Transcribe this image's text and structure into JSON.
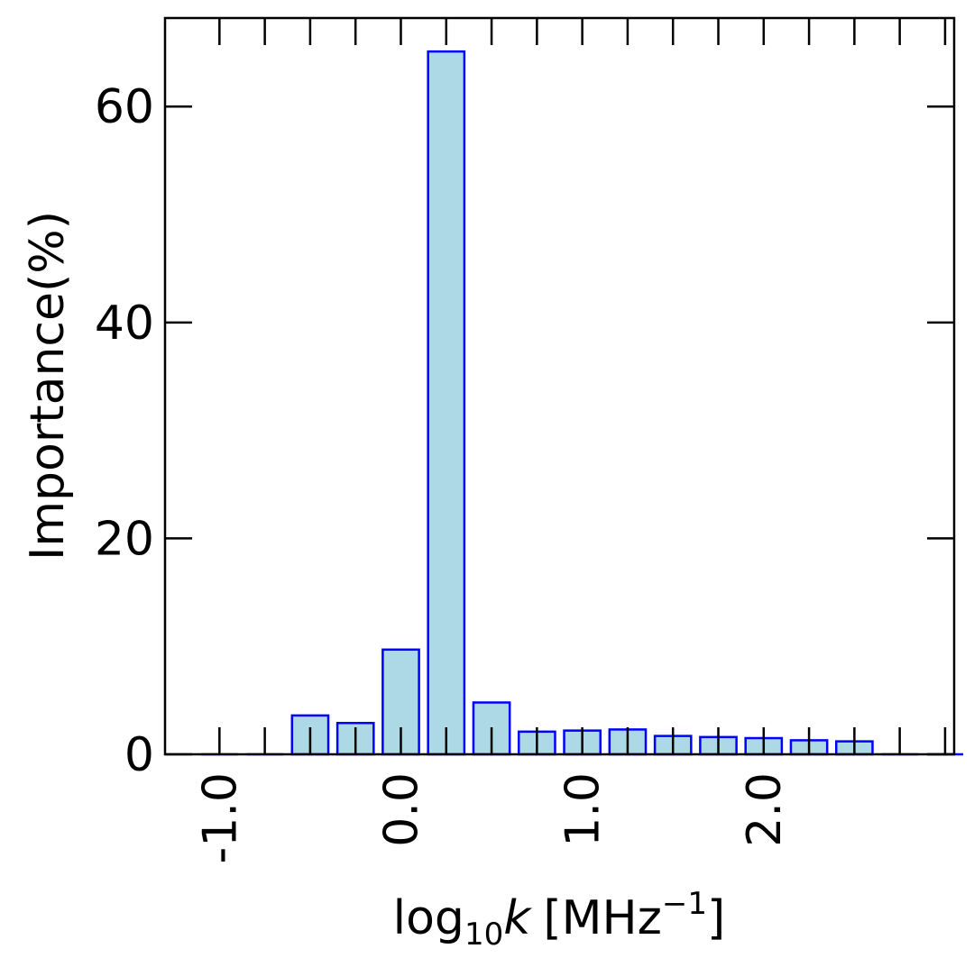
{
  "chart_data": {
    "type": "bar",
    "x": [
      -1.0,
      -0.75,
      -0.5,
      -0.25,
      0.0,
      0.25,
      0.5,
      0.75,
      1.0,
      1.25,
      1.5,
      1.75,
      2.0,
      2.25,
      2.5,
      2.75,
      3.0
    ],
    "values": [
      0,
      0,
      3.6,
      2.9,
      9.7,
      65.1,
      4.8,
      2.1,
      2.2,
      2.3,
      1.7,
      1.6,
      1.5,
      1.3,
      1.2,
      0,
      0
    ],
    "xlim": [
      -1.3,
      3.05
    ],
    "ylim": [
      0,
      68.2
    ],
    "xticks": [
      -1.0,
      0.0,
      1.0,
      2.0
    ],
    "xtick_labels": [
      "-1.0",
      "0.0",
      "1.0",
      "2.0"
    ],
    "yticks": [
      0,
      20,
      40,
      60
    ],
    "ytick_labels": [
      "0",
      "20",
      "40",
      "60"
    ],
    "xlabel": "log10k [MHz−1]",
    "xlabel_parts": {
      "base": "log",
      "sub": "10",
      "var": "k",
      "unit": "[MHz",
      "sup": "−1",
      "close": "]"
    },
    "ylabel": "Importance(%)",
    "bar_fill": "#add8e6",
    "bar_edge": "#0000ff",
    "grid": false,
    "legend": "none"
  }
}
